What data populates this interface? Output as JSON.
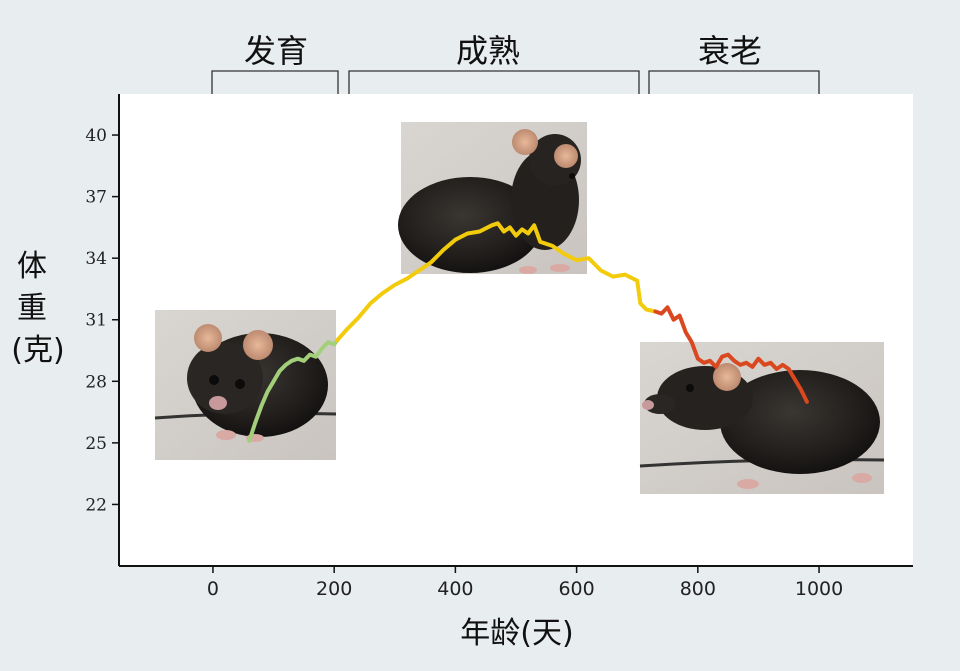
{
  "chart_data": {
    "type": "line",
    "xlabel": "年龄(天)",
    "ylabel": "体重(克)",
    "x_ticks": [
      0,
      200,
      400,
      600,
      800,
      1000
    ],
    "y_ticks": [
      22,
      25,
      28,
      31,
      34,
      37,
      40
    ],
    "xlim": [
      -155,
      1155
    ],
    "ylim": [
      19,
      42
    ],
    "grid": false,
    "phases": [
      {
        "label": "发育",
        "range": [
          0,
          205
        ],
        "color": "#a3cf7a"
      },
      {
        "label": "成熟",
        "range": [
          225,
          700
        ],
        "color": "#f2cc0c"
      },
      {
        "label": "衰老",
        "range": [
          715,
          1000
        ],
        "color": "#d9481f"
      }
    ],
    "series": [
      {
        "phase": "发育",
        "color": "#a3cf7a",
        "x": [
          60,
          70,
          80,
          90,
          100,
          110,
          120,
          130,
          140,
          150,
          160,
          170,
          180,
          190,
          200,
          205
        ],
        "y": [
          25.1,
          26.0,
          26.8,
          27.5,
          28.0,
          28.5,
          28.8,
          29.0,
          29.1,
          29.0,
          29.3,
          29.2,
          29.6,
          29.9,
          29.8,
          30.0
        ]
      },
      {
        "phase": "成熟",
        "color": "#f2cc0c",
        "x": [
          205,
          220,
          240,
          260,
          280,
          300,
          320,
          340,
          360,
          380,
          400,
          420,
          440,
          460,
          470,
          480,
          490,
          500,
          510,
          520,
          530,
          540,
          560,
          580,
          600,
          620,
          640,
          660,
          680,
          700,
          705,
          715,
          730
        ],
        "y": [
          30.0,
          30.5,
          31.1,
          31.8,
          32.3,
          32.7,
          33.0,
          33.4,
          33.8,
          34.4,
          34.9,
          35.2,
          35.3,
          35.6,
          35.7,
          35.3,
          35.5,
          35.1,
          35.4,
          35.2,
          35.6,
          34.8,
          34.6,
          34.2,
          33.9,
          34.0,
          33.4,
          33.1,
          33.2,
          32.9,
          31.8,
          31.5,
          31.4
        ]
      },
      {
        "phase": "衰老",
        "color": "#d9481f",
        "x": [
          730,
          740,
          750,
          760,
          770,
          780,
          790,
          800,
          810,
          820,
          830,
          840,
          850,
          860,
          870,
          880,
          890,
          900,
          910,
          920,
          930,
          940,
          950,
          960,
          970,
          980
        ],
        "y": [
          31.4,
          31.3,
          31.6,
          31.0,
          31.2,
          30.4,
          29.9,
          29.1,
          28.9,
          29.0,
          28.7,
          29.2,
          29.3,
          29.0,
          28.8,
          28.9,
          28.7,
          29.1,
          28.8,
          28.9,
          28.6,
          28.8,
          28.6,
          28.1,
          27.6,
          27.0
        ]
      }
    ],
    "photos": [
      {
        "name": "young-mouse-photo",
        "phase": "发育"
      },
      {
        "name": "adult-mouse-photo",
        "phase": "成熟"
      },
      {
        "name": "old-mouse-photo",
        "phase": "衰老"
      }
    ]
  }
}
